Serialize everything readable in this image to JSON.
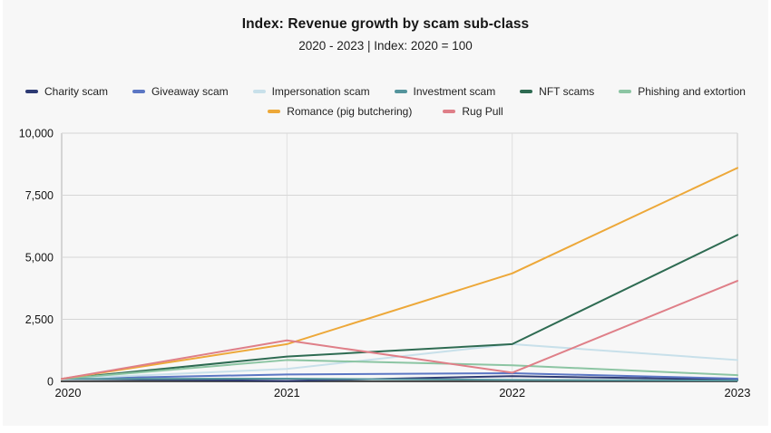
{
  "header": {
    "title": "Index: Revenue growth by scam sub-class",
    "subtitle": "2020 - 2023 | Index: 2020 = 100"
  },
  "chart_data": {
    "type": "line",
    "title": "Index: Revenue growth by scam sub-class",
    "subtitle": "2020 - 2023 | Index: 2020 = 100",
    "categories": [
      "2020",
      "2021",
      "2022",
      "2023"
    ],
    "series": [
      {
        "name": "Charity scam",
        "color": "#2d3a73",
        "values": [
          100,
          20,
          210,
          70
        ]
      },
      {
        "name": "Giveaway scam",
        "color": "#5c77c4",
        "values": [
          100,
          280,
          330,
          110
        ]
      },
      {
        "name": "Impersonation scam",
        "color": "#c8e0ea",
        "values": [
          100,
          500,
          1500,
          860
        ]
      },
      {
        "name": "Investment scam",
        "color": "#54949c",
        "values": [
          100,
          110,
          60,
          30
        ]
      },
      {
        "name": "NFT scams",
        "color": "#2e6b52",
        "values": [
          100,
          1000,
          1500,
          5900
        ]
      },
      {
        "name": "Phishing and extortion",
        "color": "#8cc5a3",
        "values": [
          100,
          860,
          650,
          250
        ]
      },
      {
        "name": "Romance (pig butchering)",
        "color": "#eda839",
        "values": [
          100,
          1500,
          4350,
          8600
        ]
      },
      {
        "name": "Rug Pull",
        "color": "#df7f88",
        "values": [
          100,
          1650,
          350,
          4050
        ]
      }
    ],
    "xlabel": "",
    "ylabel": "",
    "ylim": [
      0,
      10000
    ],
    "y_tick_values": [
      0,
      2500,
      5000,
      7500,
      10000
    ],
    "y_tick_labels": [
      "0",
      "2,500",
      "5,000",
      "7,500",
      "10,000"
    ],
    "grid": true,
    "legend_position": "top",
    "legend_row_break": 6
  }
}
